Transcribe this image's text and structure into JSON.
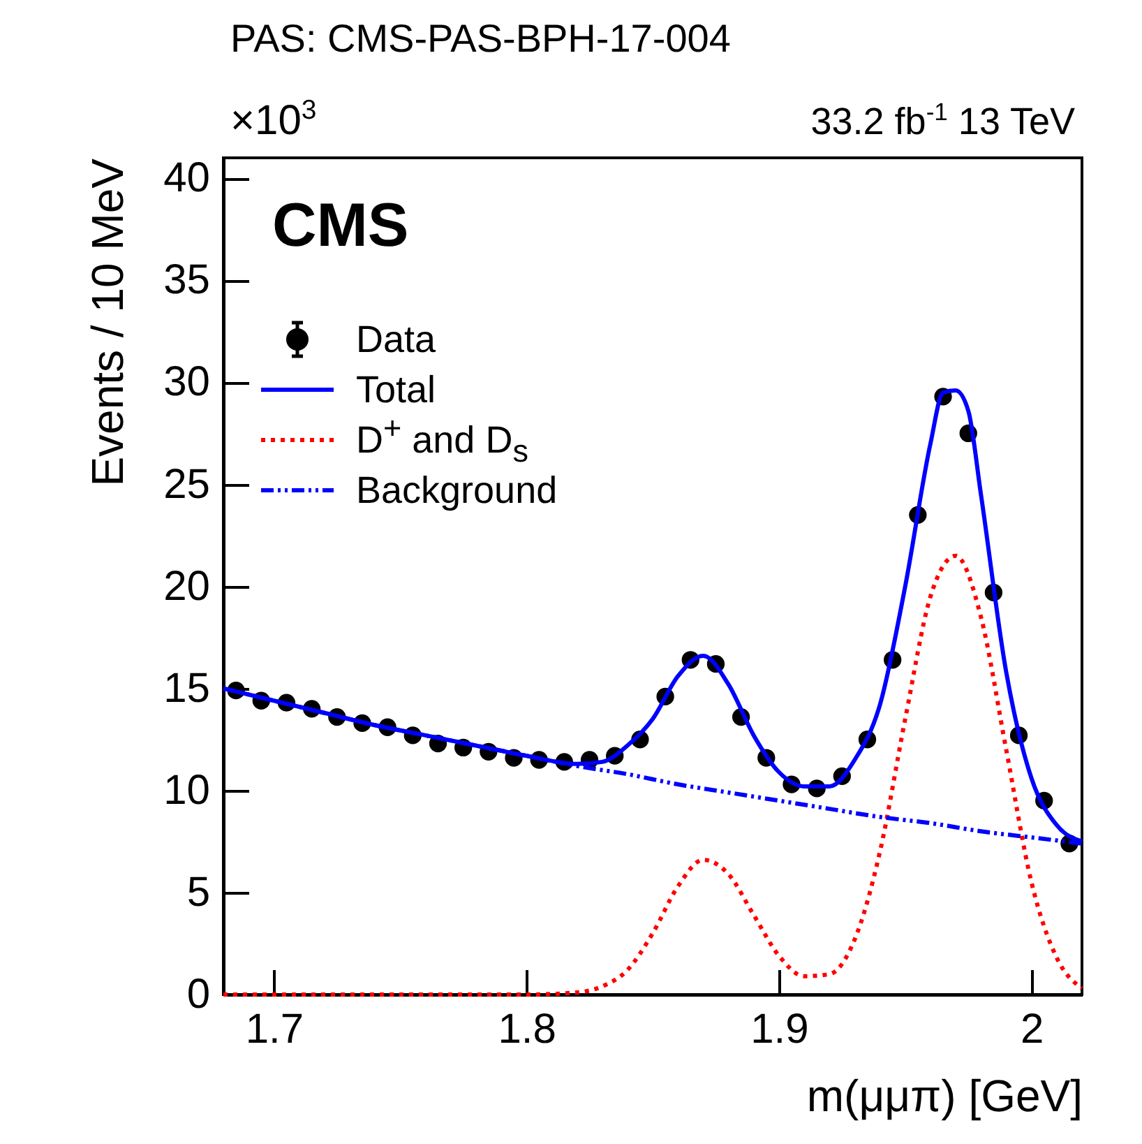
{
  "chart_data": {
    "type": "scatter",
    "title": "PAS: CMS-PAS-BPH-17-004",
    "xlabel": "m(μμπ) [GeV]",
    "ylabel": "Events / 10 MeV",
    "annotations": [
      "×10$^{3}$",
      "33.2 fb$^{-1}$  13 TeV",
      "CMS"
    ],
    "xlim": [
      1.68,
      2.02
    ],
    "xticks": [
      1.7,
      1.8,
      1.9,
      2
    ],
    "ylim": [
      0,
      41
    ],
    "yticks": [
      0,
      5,
      10,
      15,
      20,
      25,
      30,
      35,
      40
    ],
    "grid": false,
    "legend": "top left",
    "series": [
      {
        "name": "Data",
        "marker": "circle",
        "color": "#000000",
        "x": [
          1.685,
          1.695,
          1.705,
          1.715,
          1.725,
          1.735,
          1.745,
          1.755,
          1.765,
          1.775,
          1.785,
          1.795,
          1.805,
          1.815,
          1.825,
          1.835,
          1.845,
          1.855,
          1.865,
          1.875,
          1.885,
          1.895,
          1.905,
          1.915,
          1.925,
          1.935,
          1.945,
          1.955,
          1.965,
          1.975,
          1.985,
          1.995,
          2.005,
          2.015
        ],
        "values": [
          14.9,
          14.4,
          14.3,
          14.0,
          13.6,
          13.3,
          13.1,
          12.7,
          12.3,
          12.1,
          11.9,
          11.6,
          11.5,
          11.4,
          11.5,
          11.7,
          12.5,
          14.6,
          16.4,
          16.2,
          13.6,
          11.6,
          10.3,
          10.1,
          10.7,
          12.5,
          16.4,
          23.5,
          29.3,
          27.5,
          19.7,
          12.7,
          9.5,
          7.4
        ]
      },
      {
        "name": "Total",
        "type": "line",
        "line_style": "solid",
        "color": "#0000ff",
        "x": [
          1.68,
          1.7,
          1.72,
          1.74,
          1.76,
          1.78,
          1.8,
          1.82,
          1.83,
          1.84,
          1.85,
          1.86,
          1.87,
          1.88,
          1.89,
          1.9,
          1.91,
          1.92,
          1.93,
          1.94,
          1.95,
          1.96,
          1.965,
          1.97,
          1.975,
          1.98,
          1.99,
          2.0,
          2.01,
          2.02
        ],
        "values": [
          15.0,
          14.4,
          13.8,
          13.2,
          12.7,
          12.2,
          11.7,
          11.3,
          11.4,
          12.2,
          13.5,
          15.6,
          16.6,
          15.2,
          12.7,
          10.9,
          10.2,
          10.2,
          11.5,
          14.2,
          20.0,
          27.0,
          29.5,
          29.6,
          28.6,
          24.5,
          15.8,
          10.6,
          8.3,
          7.5
        ]
      },
      {
        "name": "D$^{+}$ and D$_{s}$",
        "type": "line",
        "line_style": "dotted",
        "color": "#ff0000",
        "x": [
          1.68,
          1.8,
          1.82,
          1.83,
          1.84,
          1.85,
          1.86,
          1.87,
          1.88,
          1.89,
          1.9,
          1.91,
          1.92,
          1.93,
          1.94,
          1.95,
          1.96,
          1.97,
          1.98,
          1.99,
          2.0,
          2.01,
          2.02
        ],
        "values": [
          0,
          0,
          0.1,
          0.4,
          1.2,
          3.0,
          5.3,
          6.6,
          5.9,
          3.9,
          1.9,
          0.9,
          1.0,
          2.7,
          7.0,
          13.5,
          19.5,
          21.5,
          18.5,
          12.0,
          5.5,
          1.8,
          0.3
        ]
      },
      {
        "name": "Background",
        "type": "line",
        "line_style": "dashed",
        "color": "#0000ff",
        "x": [
          1.68,
          1.7,
          1.72,
          1.74,
          1.76,
          1.78,
          1.8,
          1.82,
          1.84,
          1.86,
          1.88,
          1.9,
          1.92,
          1.94,
          1.96,
          1.98,
          2.0,
          2.02
        ],
        "values": [
          15.0,
          14.4,
          13.8,
          13.2,
          12.7,
          12.2,
          11.7,
          11.2,
          10.8,
          10.3,
          9.9,
          9.5,
          9.1,
          8.7,
          8.4,
          8.0,
          7.7,
          7.4
        ]
      }
    ]
  }
}
